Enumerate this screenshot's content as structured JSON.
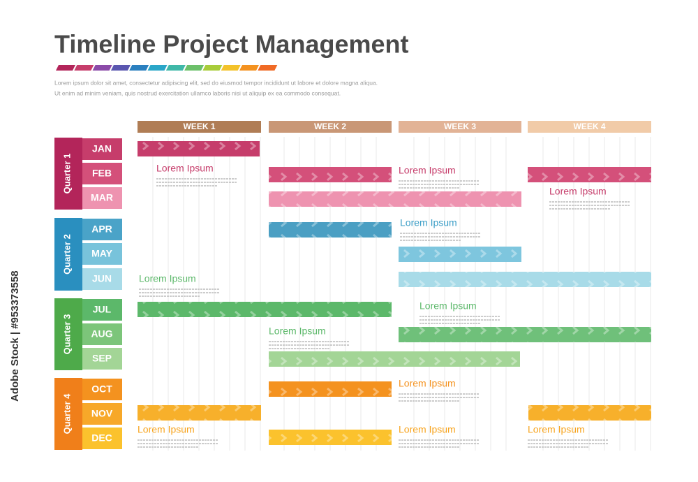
{
  "header": {
    "title": "Timeline Project Management",
    "description": [
      "Lorem ipsum dolor sit amet, consectetur adipiscing elit, sed do eiusmod tempor incididunt ut labore et dolore magna aliqua.",
      "Ut enim ad minim veniam, quis nostrud exercitation ullamco laboris nisi ut aliquip ex ea commodo consequat."
    ]
  },
  "weeks": [
    "WEEK 1",
    "WEEK 2",
    "WEEK 3",
    "WEEK 4"
  ],
  "quarters": [
    {
      "label": "Quarter 1",
      "months": [
        "JAN",
        "FEB",
        "MAR"
      ]
    },
    {
      "label": "Quarter 2",
      "months": [
        "APR",
        "MAY",
        "JUN"
      ]
    },
    {
      "label": "Quarter 3",
      "months": [
        "JUL",
        "AUG",
        "SEP"
      ]
    },
    {
      "label": "Quarter 4",
      "months": [
        "OCT",
        "NOV",
        "DEC"
      ]
    }
  ],
  "notes": [
    "Lorem Ipsum",
    "Lorem Ipsum",
    "Lorem Ipsum",
    "Lorem Ipsum",
    "Lorem Ipsum",
    "Lorem Ipsum",
    "Lorem Ipsum",
    "Lorem Ipsum",
    "Lorem Ipsum",
    "Lorem Ipsum",
    "Lorem Ipsum"
  ],
  "watermark": "Adobe Stock | #953373558"
}
